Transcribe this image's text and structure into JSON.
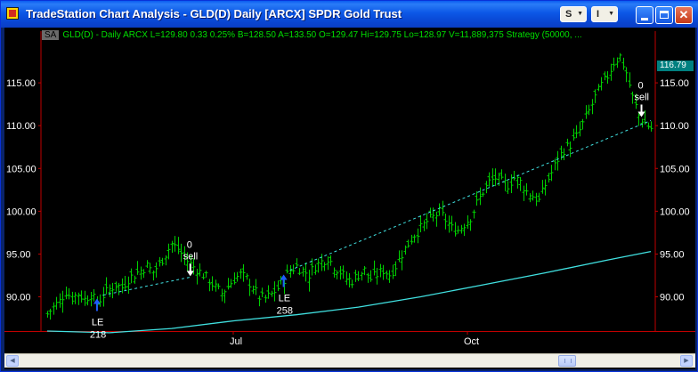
{
  "window": {
    "title": "TradeStation Chart Analysis - GLD(D) Daily [ARCX] SPDR Gold Trust",
    "toolbar_s": "S",
    "toolbar_i": "I"
  },
  "status_bar": {
    "badge": "SA",
    "text": "GLD(D) - Daily  ARCX  L=129.80  0.33  0.25%  B=128.50  A=133.50  O=129.47  Hi=129.75  Lo=128.97  V=11,889,375  Strategy (50000, ..."
  },
  "last_price": "116.79",
  "colors": {
    "bars": "#00d000",
    "moving_average": "#40e0e0",
    "trendline": "#40e0e0",
    "axis_border": "#c00000",
    "entry_arrow": "#1e5cff",
    "exit_arrow": "#ffffff"
  },
  "chart_data": {
    "type": "line",
    "series_kind": "ohlc-bars",
    "yticks": [
      "90.00",
      "95.00",
      "100.00",
      "105.00",
      "110.00",
      "115.00"
    ],
    "ylim": [
      86,
      120
    ],
    "x_tick_labels": [
      "Jul",
      "Oct"
    ],
    "price_path": [
      {
        "i": 0,
        "close": 88.0
      },
      {
        "i": 2,
        "close": 88.8
      },
      {
        "i": 4,
        "close": 89.5
      },
      {
        "i": 6,
        "close": 90.6
      },
      {
        "i": 8,
        "close": 89.9
      },
      {
        "i": 10,
        "close": 90.4
      },
      {
        "i": 12,
        "close": 89.7
      },
      {
        "i": 14,
        "close": 90.3
      },
      {
        "i": 16,
        "close": 89.2
      },
      {
        "i": 18,
        "close": 90.2
      },
      {
        "i": 20,
        "close": 90.9
      },
      {
        "i": 22,
        "close": 91.4
      },
      {
        "i": 24,
        "close": 91.1
      },
      {
        "i": 26,
        "close": 92.1
      },
      {
        "i": 28,
        "close": 92.6
      },
      {
        "i": 30,
        "close": 93.1
      },
      {
        "i": 32,
        "close": 93.6
      },
      {
        "i": 34,
        "close": 92.9
      },
      {
        "i": 36,
        "close": 93.8
      },
      {
        "i": 38,
        "close": 95.0
      },
      {
        "i": 40,
        "close": 96.2
      },
      {
        "i": 42,
        "close": 95.6
      },
      {
        "i": 44,
        "close": 94.6
      },
      {
        "i": 46,
        "close": 93.8
      },
      {
        "i": 48,
        "close": 93.2
      },
      {
        "i": 50,
        "close": 92.6
      },
      {
        "i": 52,
        "close": 91.9
      },
      {
        "i": 54,
        "close": 91.1
      },
      {
        "i": 56,
        "close": 90.4
      },
      {
        "i": 58,
        "close": 91.2
      },
      {
        "i": 60,
        "close": 92.1
      },
      {
        "i": 62,
        "close": 92.6
      },
      {
        "i": 64,
        "close": 92.1
      },
      {
        "i": 66,
        "close": 91.1
      },
      {
        "i": 68,
        "close": 90.0
      },
      {
        "i": 70,
        "close": 89.8
      },
      {
        "i": 72,
        "close": 90.3
      },
      {
        "i": 74,
        "close": 91.0
      },
      {
        "i": 76,
        "close": 92.1
      },
      {
        "i": 78,
        "close": 93.1
      },
      {
        "i": 80,
        "close": 93.6
      },
      {
        "i": 82,
        "close": 93.1
      },
      {
        "i": 84,
        "close": 92.6
      },
      {
        "i": 86,
        "close": 93.6
      },
      {
        "i": 88,
        "close": 94.1
      },
      {
        "i": 90,
        "close": 94.6
      },
      {
        "i": 92,
        "close": 93.6
      },
      {
        "i": 94,
        "close": 92.9
      },
      {
        "i": 96,
        "close": 92.1
      },
      {
        "i": 98,
        "close": 91.9
      },
      {
        "i": 100,
        "close": 92.6
      },
      {
        "i": 102,
        "close": 93.1
      },
      {
        "i": 104,
        "close": 92.1
      },
      {
        "i": 106,
        "close": 92.6
      },
      {
        "i": 108,
        "close": 93.1
      },
      {
        "i": 110,
        "close": 92.6
      },
      {
        "i": 112,
        "close": 93.6
      },
      {
        "i": 114,
        "close": 95.0
      },
      {
        "i": 116,
        "close": 96.2
      },
      {
        "i": 118,
        "close": 97.3
      },
      {
        "i": 120,
        "close": 98.0
      },
      {
        "i": 122,
        "close": 98.8
      },
      {
        "i": 124,
        "close": 99.3
      },
      {
        "i": 126,
        "close": 99.9
      },
      {
        "i": 128,
        "close": 99.0
      },
      {
        "i": 130,
        "close": 98.0
      },
      {
        "i": 132,
        "close": 97.8
      },
      {
        "i": 134,
        "close": 98.5
      },
      {
        "i": 136,
        "close": 99.3
      },
      {
        "i": 138,
        "close": 100.9
      },
      {
        "i": 140,
        "close": 102.3
      },
      {
        "i": 142,
        "close": 103.4
      },
      {
        "i": 144,
        "close": 103.9
      },
      {
        "i": 146,
        "close": 103.4
      },
      {
        "i": 148,
        "close": 103.1
      },
      {
        "i": 150,
        "close": 103.9
      },
      {
        "i": 152,
        "close": 103.4
      },
      {
        "i": 154,
        "close": 102.3
      },
      {
        "i": 156,
        "close": 101.8
      },
      {
        "i": 158,
        "close": 101.2
      },
      {
        "i": 160,
        "close": 103.1
      },
      {
        "i": 162,
        "close": 104.5
      },
      {
        "i": 164,
        "close": 106.1
      },
      {
        "i": 166,
        "close": 107.2
      },
      {
        "i": 168,
        "close": 107.8
      },
      {
        "i": 170,
        "close": 108.7
      },
      {
        "i": 172,
        "close": 110.2
      },
      {
        "i": 174,
        "close": 111.7
      },
      {
        "i": 176,
        "close": 113.3
      },
      {
        "i": 178,
        "close": 114.7
      },
      {
        "i": 180,
        "close": 115.8
      },
      {
        "i": 182,
        "close": 117.4
      },
      {
        "i": 184,
        "close": 118.1
      },
      {
        "i": 186,
        "close": 116.2
      },
      {
        "i": 188,
        "close": 113.3
      },
      {
        "i": 190,
        "close": 111.2
      },
      {
        "i": 192,
        "close": 110.3
      },
      {
        "i": 194,
        "close": 109.7
      }
    ],
    "moving_average": [
      {
        "i": 0,
        "value": 86.0
      },
      {
        "i": 20,
        "value": 85.8
      },
      {
        "i": 40,
        "value": 86.3
      },
      {
        "i": 60,
        "value": 87.2
      },
      {
        "i": 80,
        "value": 87.9
      },
      {
        "i": 100,
        "value": 88.8
      },
      {
        "i": 120,
        "value": 90.0
      },
      {
        "i": 140,
        "value": 91.4
      },
      {
        "i": 160,
        "value": 92.8
      },
      {
        "i": 180,
        "value": 94.3
      },
      {
        "i": 194,
        "value": 95.3
      }
    ],
    "trendlines": [
      {
        "i1": 18,
        "y1": 90.2,
        "i2": 46,
        "y2": 92.3
      },
      {
        "i1": 78,
        "y1": 93.1,
        "i2": 194,
        "y2": 110.6
      }
    ],
    "signals": [
      {
        "type": "entry",
        "label": "LE",
        "quantity": "218",
        "i": 16,
        "price": 89.8
      },
      {
        "type": "exit",
        "label": "sell",
        "quantity": "0",
        "i": 46,
        "price": 92.2
      },
      {
        "type": "entry",
        "label": "LE",
        "quantity": "258",
        "i": 76,
        "price": 92.6
      },
      {
        "type": "exit",
        "label": "sell",
        "quantity": "0",
        "i": 191,
        "price": 110.8
      }
    ],
    "n_bars": 195
  }
}
